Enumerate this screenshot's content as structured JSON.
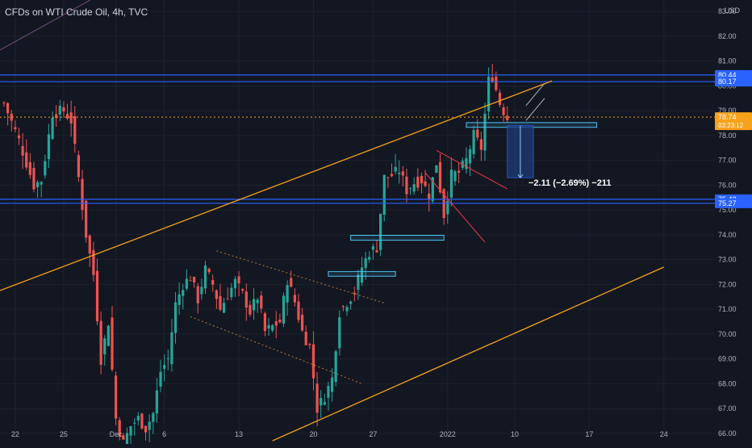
{
  "header": {
    "title": "CFDs on WTI Crude Oil, 4h, TVC"
  },
  "colors": {
    "background": "#131722",
    "up": "#26a69a",
    "down": "#ef5350",
    "trendline": "#f7a21b",
    "level": "#2962ff",
    "price_dotted": "#f7a21b",
    "zone": "#4fc3f7",
    "measure_fill": "#1e3a78",
    "axis_text": "#b2b5be",
    "grid": "#1e222d"
  },
  "chart_data": {
    "type": "candlestick",
    "title": "CFDs on WTI Crude Oil, 4h, TVC",
    "xlabel": "",
    "ylabel": "USD",
    "ylim": [
      65.8,
      83.2
    ],
    "y_ticks": [
      66.0,
      67.0,
      68.0,
      69.0,
      70.0,
      71.0,
      72.0,
      73.0,
      74.0,
      75.0,
      76.0,
      77.0,
      78.0,
      79.0,
      80.0,
      81.0,
      82.0,
      83.0
    ],
    "x_ticks": [
      {
        "label": "22",
        "bar": 3
      },
      {
        "label": "25",
        "bar": 16
      },
      {
        "label": "Dec",
        "bar": 30
      },
      {
        "label": "6",
        "bar": 43
      },
      {
        "label": "13",
        "bar": 63
      },
      {
        "label": "20",
        "bar": 83
      },
      {
        "label": "27",
        "bar": 99
      },
      {
        "label": "2022",
        "bar": 119
      },
      {
        "label": "10",
        "bar": 137
      },
      {
        "label": "17",
        "bar": 157
      },
      {
        "label": "24",
        "bar": 177
      }
    ],
    "grid": true,
    "price_markers": [
      {
        "label": "80.44",
        "value": 80.44
      },
      {
        "label": "80.17",
        "value": 80.17
      },
      {
        "label": "78.74",
        "value": 78.74,
        "sub": "03:23:12"
      },
      {
        "label": "75.43",
        "value": 75.43
      },
      {
        "label": "75.27",
        "value": 75.27
      }
    ],
    "measure_label": "−2.11 (−2.69%) −211",
    "series": [
      {
        "name": "WTI",
        "anchors": [
          [
            0,
            79.3
          ],
          [
            4,
            77.8
          ],
          [
            8,
            76.0
          ],
          [
            10,
            76.2
          ],
          [
            13,
            78.9
          ],
          [
            16,
            79.0
          ],
          [
            18,
            78.6
          ],
          [
            20,
            76.3
          ],
          [
            22,
            74.0
          ],
          [
            24,
            72.4
          ],
          [
            26,
            69.0
          ],
          [
            28,
            70.5
          ],
          [
            30,
            66.6
          ],
          [
            32,
            65.6
          ],
          [
            34,
            66.3
          ],
          [
            36,
            66.6
          ],
          [
            38,
            66.2
          ],
          [
            40,
            66.8
          ],
          [
            42,
            68.5
          ],
          [
            44,
            69.0
          ],
          [
            46,
            71.2
          ],
          [
            48,
            72.0
          ],
          [
            50,
            72.3
          ],
          [
            52,
            71.4
          ],
          [
            54,
            72.6
          ],
          [
            56,
            72.0
          ],
          [
            58,
            71.0
          ],
          [
            60,
            71.6
          ],
          [
            62,
            72.1
          ],
          [
            64,
            71.6
          ],
          [
            66,
            70.9
          ],
          [
            68,
            71.5
          ],
          [
            70,
            70.1
          ],
          [
            72,
            70.3
          ],
          [
            74,
            70.5
          ],
          [
            76,
            72.2
          ],
          [
            78,
            71.3
          ],
          [
            80,
            70.1
          ],
          [
            82,
            69.5
          ],
          [
            84,
            67.0
          ],
          [
            86,
            67.5
          ],
          [
            88,
            68.2
          ],
          [
            90,
            70.9
          ],
          [
            92,
            71.3
          ],
          [
            94,
            71.7
          ],
          [
            96,
            72.7
          ],
          [
            98,
            73.3
          ],
          [
            100,
            73.5
          ],
          [
            102,
            76.3
          ],
          [
            104,
            76.4
          ],
          [
            106,
            76.6
          ],
          [
            108,
            75.8
          ],
          [
            110,
            76.1
          ],
          [
            112,
            76.2
          ],
          [
            114,
            75.6
          ],
          [
            116,
            76.9
          ],
          [
            118,
            74.8
          ],
          [
            120,
            76.4
          ],
          [
            122,
            76.5
          ],
          [
            124,
            77.0
          ],
          [
            126,
            78.0
          ],
          [
            128,
            77.5
          ],
          [
            130,
            80.2
          ],
          [
            131,
            80.4
          ],
          [
            133,
            79.3
          ],
          [
            135,
            78.7
          ]
        ]
      }
    ],
    "annotations": {
      "orange_trendlines": [
        {
          "x1": -2,
          "y1": 71.7,
          "x2": 147,
          "y2": 80.2
        },
        {
          "x1": 72,
          "y1": 65.7,
          "x2": 177,
          "y2": 72.7
        }
      ],
      "horizontal_levels": [
        80.44,
        80.17,
        75.43,
        75.27
      ],
      "dotted_price_line": 78.74,
      "zones": [
        {
          "x1": 124,
          "x2": 159,
          "y1": 78.33,
          "y2": 78.52
        },
        {
          "x1": 93,
          "x2": 118,
          "y1": 73.78,
          "y2": 73.98
        },
        {
          "x1": 87,
          "x2": 105,
          "y1": 72.33,
          "y2": 72.52
        }
      ],
      "measure_box": {
        "x1": 135,
        "x2": 142,
        "y_top": 78.4,
        "y_bottom": 76.3
      }
    }
  }
}
